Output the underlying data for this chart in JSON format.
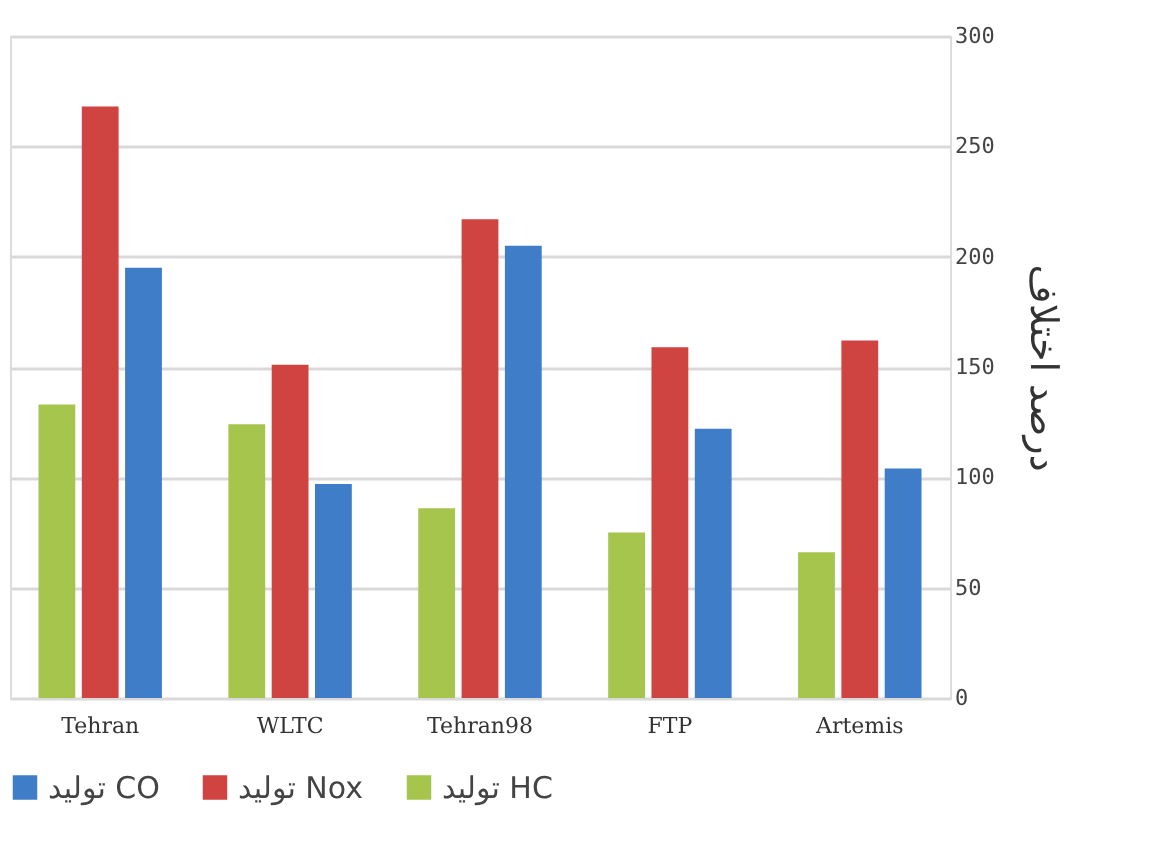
{
  "chart_data": {
    "type": "bar",
    "ylabel": "درصد اختلاف",
    "categories": [
      "Tehran",
      "WLTC",
      "Tehran98",
      "FTP",
      "Artemis"
    ],
    "series": [
      {
        "name": "تولید HC",
        "color": "#a5c54c",
        "values": [
          133,
          124,
          86,
          75,
          66
        ]
      },
      {
        "name": "تولید Nox",
        "color": "#cf4340",
        "values": [
          268,
          151,
          217,
          159,
          162
        ]
      },
      {
        "name": "تولید CO",
        "color": "#3f7dc9",
        "values": [
          195,
          97,
          205,
          122,
          104
        ]
      }
    ],
    "ylim": [
      0,
      300
    ],
    "yticks": [
      0,
      50,
      100,
      150,
      200,
      250,
      300
    ],
    "grid": "y",
    "legend": "bottom"
  }
}
